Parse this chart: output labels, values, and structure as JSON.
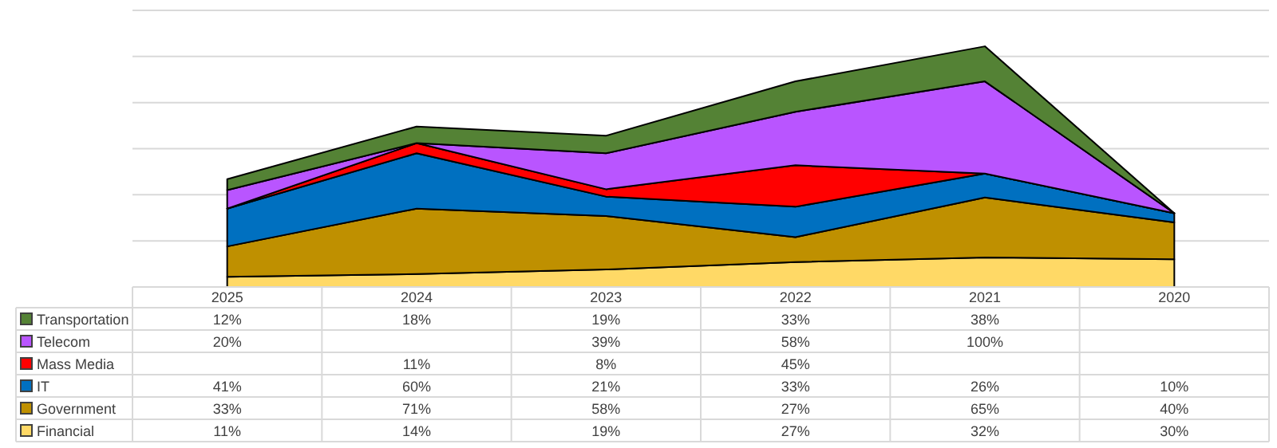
{
  "chart_data": {
    "type": "area",
    "stacked": true,
    "categories": [
      "2025",
      "2024",
      "2023",
      "2022",
      "2021",
      "2020"
    ],
    "ylim": [
      0,
      300
    ],
    "yticks": [
      {
        "value": 0,
        "label": null
      },
      {
        "value": 50,
        "label": null
      },
      {
        "value": 100,
        "label": null
      },
      {
        "value": 150,
        "label": null
      },
      {
        "value": 200,
        "label": null
      },
      {
        "value": 250,
        "label": null
      },
      {
        "value": 300,
        "label": null
      }
    ],
    "grid": "y",
    "tick_labels": "x",
    "legend": "bottom left",
    "series": [
      {
        "name": "Financial",
        "color": "#ffd966",
        "values": [
          11,
          14,
          19,
          27,
          32,
          30
        ],
        "value_labels": [
          "11%",
          "14%",
          "19%",
          "27%",
          "32%",
          "30%"
        ]
      },
      {
        "name": "Government",
        "color": "#bf9000",
        "values": [
          33,
          71,
          58,
          27,
          65,
          40
        ],
        "value_labels": [
          "33%",
          "71%",
          "58%",
          "27%",
          "65%",
          "40%"
        ]
      },
      {
        "name": "IT",
        "color": "#0070c0",
        "values": [
          41,
          60,
          21,
          33,
          26,
          10
        ],
        "value_labels": [
          "41%",
          "60%",
          "21%",
          "33%",
          "26%",
          "10%"
        ]
      },
      {
        "name": "Mass Media",
        "color": "#ff0000",
        "values": [
          0,
          11,
          8,
          45,
          0,
          0
        ],
        "value_labels": [
          null,
          "11%",
          "8%",
          "45%",
          null,
          null
        ]
      },
      {
        "name": "Telecom",
        "color": "#b955ff",
        "values": [
          20,
          0,
          39,
          58,
          100,
          0
        ],
        "value_labels": [
          "20%",
          null,
          "39%",
          "58%",
          "100%",
          null
        ]
      },
      {
        "name": "Transportation",
        "color": "#548235",
        "values": [
          12,
          18,
          19,
          33,
          38,
          0
        ],
        "value_labels": [
          "12%",
          "18%",
          "19%",
          "33%",
          "38%",
          null
        ]
      }
    ]
  }
}
